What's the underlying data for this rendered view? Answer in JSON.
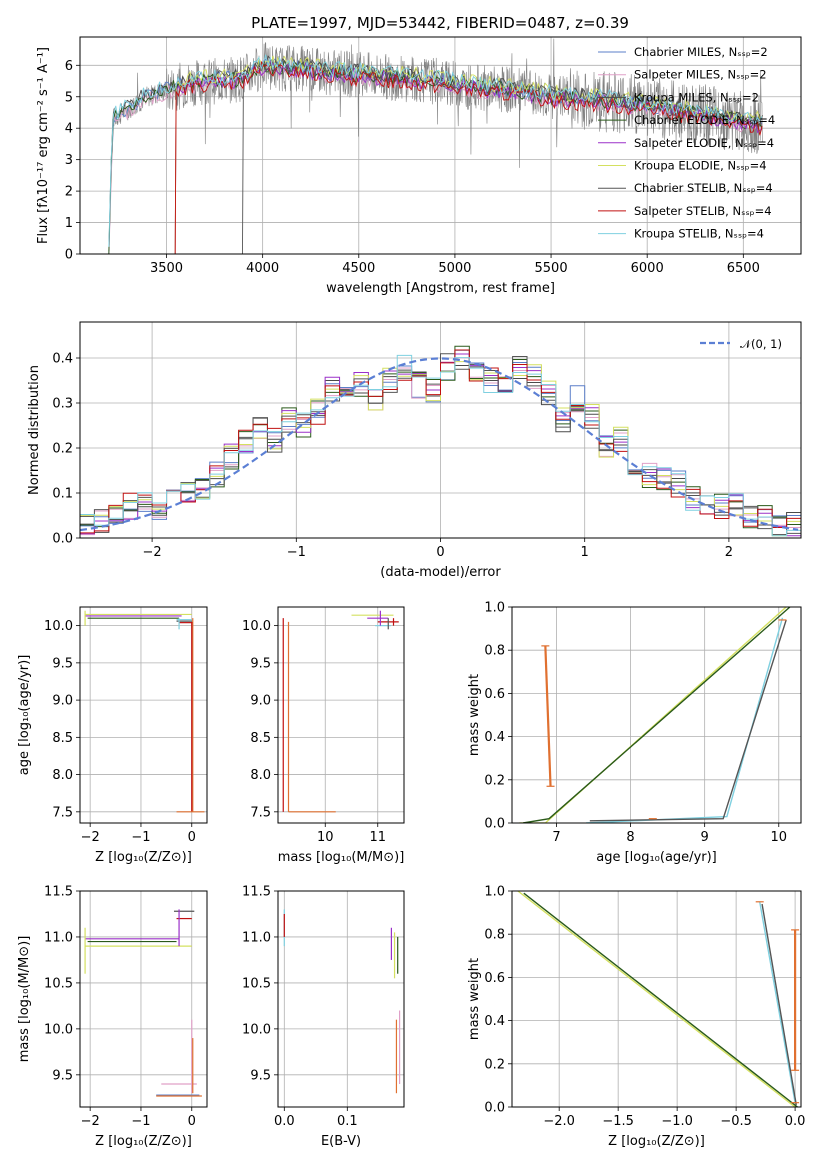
{
  "title": "PLATE=1997, MJD=53442, FIBERID=0487, z=0.39",
  "model_colors": [
    "#5b7fc9",
    "#e0a0c8",
    "#4a4a4a",
    "#2a5a1a",
    "#9b30c9",
    "#d4e060",
    "#555555",
    "#c01010",
    "#7fd0e0"
  ],
  "chart_data": [
    {
      "id": "spectrum",
      "type": "line",
      "title": "PLATE=1997, MJD=53442, FIBERID=0487, z=0.39",
      "xlabel": "wavelength [Angstrom, rest frame]",
      "ylabel": "Flux [fλ10⁻¹⁷ erg cm⁻² s⁻¹ A⁻¹]",
      "xlim": [
        3050,
        6800
      ],
      "ylim": [
        0,
        6.9
      ],
      "xticks": [
        3500,
        4000,
        4500,
        5000,
        5500,
        6000,
        6500
      ],
      "yticks": [
        0,
        1,
        2,
        3,
        4,
        5,
        6
      ],
      "legend_position": "right",
      "series": [
        {
          "name": "Chabrier MILES, N_SSP=2",
          "color": "#5b7fc9"
        },
        {
          "name": "Salpeter MILES, N_SSP=2",
          "color": "#e0a0c8"
        },
        {
          "name": "Kroupa MILES, N_SSP=2",
          "color": "#4a4a4a"
        },
        {
          "name": "Chabrier ELODIE, N_SSP=4",
          "color": "#2a5a1a"
        },
        {
          "name": "Salpeter ELODIE, N_SSP=4",
          "color": "#9b30c9"
        },
        {
          "name": "Kroupa ELODIE, N_SSP=4",
          "color": "#d4e060"
        },
        {
          "name": "Chabrier STELIB, N_SSP=4",
          "color": "#555555"
        },
        {
          "name": "Salpeter STELIB, N_SSP=4",
          "color": "#c01010"
        },
        {
          "name": "Kroupa STELIB, N_SSP=4",
          "color": "#7fd0e0"
        }
      ],
      "data_trend": {
        "x": [
          3200,
          3220,
          3300,
          3400,
          3500,
          3600,
          3700,
          3800,
          3900,
          4000,
          4100,
          4200,
          4300,
          4500,
          4700,
          4900,
          5100,
          5300,
          5500,
          5700,
          5900,
          6100,
          6300,
          6500,
          6600
        ],
        "y": [
          0.1,
          4.3,
          4.6,
          5.0,
          5.2,
          5.4,
          5.5,
          5.5,
          5.6,
          6.0,
          5.9,
          5.9,
          5.8,
          5.7,
          5.6,
          5.5,
          5.3,
          5.2,
          5.0,
          4.9,
          4.8,
          4.6,
          4.4,
          4.2,
          4.1
        ]
      },
      "line_styles": "data: thin grey noisy line; models: thin colored lines"
    },
    {
      "id": "residual_hist",
      "type": "line",
      "xlabel": "(data-model)/error",
      "ylabel": "Normed distribution",
      "xlim": [
        -2.5,
        2.5
      ],
      "ylim": [
        0,
        0.48
      ],
      "xticks": [
        -2,
        -1,
        0,
        1,
        2
      ],
      "yticks": [
        0.0,
        0.1,
        0.2,
        0.3,
        0.4
      ],
      "legend": "𝒩(0, 1)",
      "legend_position": "top-right",
      "gaussian": {
        "mean": 0,
        "sigma": 1,
        "style": "dashed",
        "color": "#5b7fd4"
      },
      "bin_centers": [
        -2.45,
        -2.35,
        -2.25,
        -2.15,
        -2.05,
        -1.95,
        -1.85,
        -1.75,
        -1.65,
        -1.55,
        -1.45,
        -1.35,
        -1.25,
        -1.15,
        -1.05,
        -0.95,
        -0.85,
        -0.75,
        -0.65,
        -0.55,
        -0.45,
        -0.35,
        -0.25,
        -0.15,
        -0.05,
        0.05,
        0.15,
        0.25,
        0.35,
        0.45,
        0.55,
        0.65,
        0.75,
        0.85,
        0.95,
        1.05,
        1.15,
        1.25,
        1.35,
        1.45,
        1.55,
        1.65,
        1.75,
        1.85,
        1.95,
        2.05,
        2.15,
        2.25,
        2.35,
        2.45
      ],
      "histogram_mean": [
        0.03,
        0.04,
        0.05,
        0.07,
        0.08,
        0.07,
        0.09,
        0.1,
        0.11,
        0.14,
        0.18,
        0.21,
        0.24,
        0.22,
        0.26,
        0.25,
        0.28,
        0.33,
        0.32,
        0.34,
        0.31,
        0.35,
        0.38,
        0.34,
        0.33,
        0.38,
        0.4,
        0.36,
        0.35,
        0.33,
        0.38,
        0.36,
        0.32,
        0.26,
        0.31,
        0.27,
        0.2,
        0.22,
        0.16,
        0.14,
        0.13,
        0.12,
        0.09,
        0.08,
        0.07,
        0.07,
        0.05,
        0.05,
        0.03,
        0.03
      ]
    },
    {
      "id": "age_vs_Z",
      "type": "scatter",
      "xlabel": "Z [log₁₀(Z/Z⊙)]",
      "ylabel": "age  [log₁₀(age/yr)]",
      "xlim": [
        -2.2,
        0.3
      ],
      "ylim": [
        7.35,
        10.25
      ],
      "xticks": [
        -2,
        -1,
        0
      ],
      "yticks": [
        7.5,
        8.0,
        8.5,
        9.0,
        9.5,
        10.0
      ]
    },
    {
      "id": "age_vs_mass",
      "type": "scatter",
      "xlabel": "mass [log₁₀(M/M⊙)]",
      "xlim": [
        9.1,
        11.5
      ],
      "ylim": [
        7.35,
        10.25
      ],
      "xticks": [
        10,
        11
      ],
      "yticks": [
        7.5,
        8.0,
        8.5,
        9.0,
        9.5,
        10.0
      ]
    },
    {
      "id": "weight_vs_age",
      "type": "line",
      "xlabel": "age  [log₁₀(age/yr)]",
      "ylabel": "mass weight",
      "xlim": [
        6.4,
        10.3
      ],
      "ylim": [
        0,
        1
      ],
      "xticks": [
        7,
        8,
        9,
        10
      ],
      "yticks": [
        0.0,
        0.2,
        0.4,
        0.6,
        0.8,
        1.0
      ]
    },
    {
      "id": "mass_vs_Z",
      "type": "scatter",
      "xlabel": "Z [log₁₀(Z/Z⊙)]",
      "ylabel": "mass [log₁₀(M/M⊙)]",
      "xlim": [
        -2.2,
        0.3
      ],
      "ylim": [
        9.15,
        11.5
      ],
      "xticks": [
        -2,
        -1,
        0
      ],
      "yticks": [
        9.5,
        10.0,
        10.5,
        11.0,
        11.5
      ]
    },
    {
      "id": "mass_vs_ebv",
      "type": "scatter",
      "xlabel": "E(B-V)",
      "xlim": [
        -0.01,
        0.19
      ],
      "ylim": [
        9.15,
        11.5
      ],
      "xticks": [
        0.0,
        0.1
      ],
      "yticks": [
        9.5,
        10.0,
        10.5,
        11.0,
        11.5
      ]
    },
    {
      "id": "weight_vs_Z",
      "type": "line",
      "xlabel": "Z [log₁₀(Z/Z⊙)]",
      "ylabel": "mass weight",
      "xlim": [
        -2.4,
        0.05
      ],
      "ylim": [
        0,
        1
      ],
      "xticks": [
        -2.0,
        -1.5,
        -1.0,
        -0.5,
        0.0
      ],
      "yticks": [
        0.0,
        0.2,
        0.4,
        0.6,
        0.8,
        1.0
      ]
    }
  ]
}
